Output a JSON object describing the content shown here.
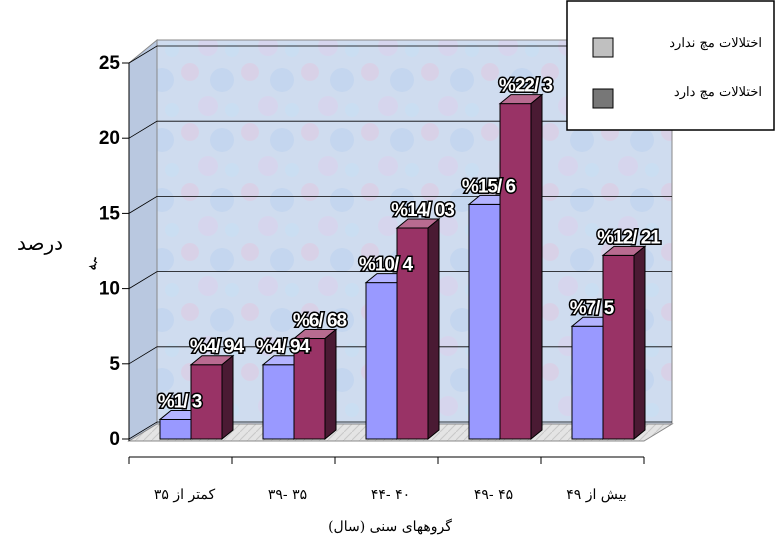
{
  "chart_data": {
    "type": "bar",
    "three_d": true,
    "categories": [
      "کمتر از ۳۵",
      "۳۵ -۳۹",
      "۴۰ -۴۴",
      "۴۵ -۴۹",
      "بیش از ۴۹"
    ],
    "series": [
      {
        "name": "اختلالات مچ ندارد",
        "values": [
          1.3,
          4.94,
          10.4,
          15.6,
          7.5
        ],
        "labels": [
          "%1/ 3",
          "%4/ 94",
          "%10/ 4",
          "%15/ 6",
          "%7/ 5"
        ],
        "color": "#9999ff"
      },
      {
        "name": "اختلالات مچ دارد",
        "values": [
          4.94,
          6.68,
          14.03,
          22.3,
          12.21
        ],
        "labels": [
          "%4/ 94",
          "%6/ 68",
          "%14/ 03",
          "%22/ 3",
          "%12/ 21"
        ],
        "color": "#993366"
      }
    ],
    "ylabel": "درصد",
    "ylabel_marker": "ﮧﻪ",
    "xlabel": "گروههای سنی (سال)",
    "yticks": [
      "0",
      "5",
      "10",
      "15",
      "20",
      "25"
    ],
    "ylim": [
      0,
      25
    ],
    "grid": true,
    "legend_position": "top-right"
  }
}
